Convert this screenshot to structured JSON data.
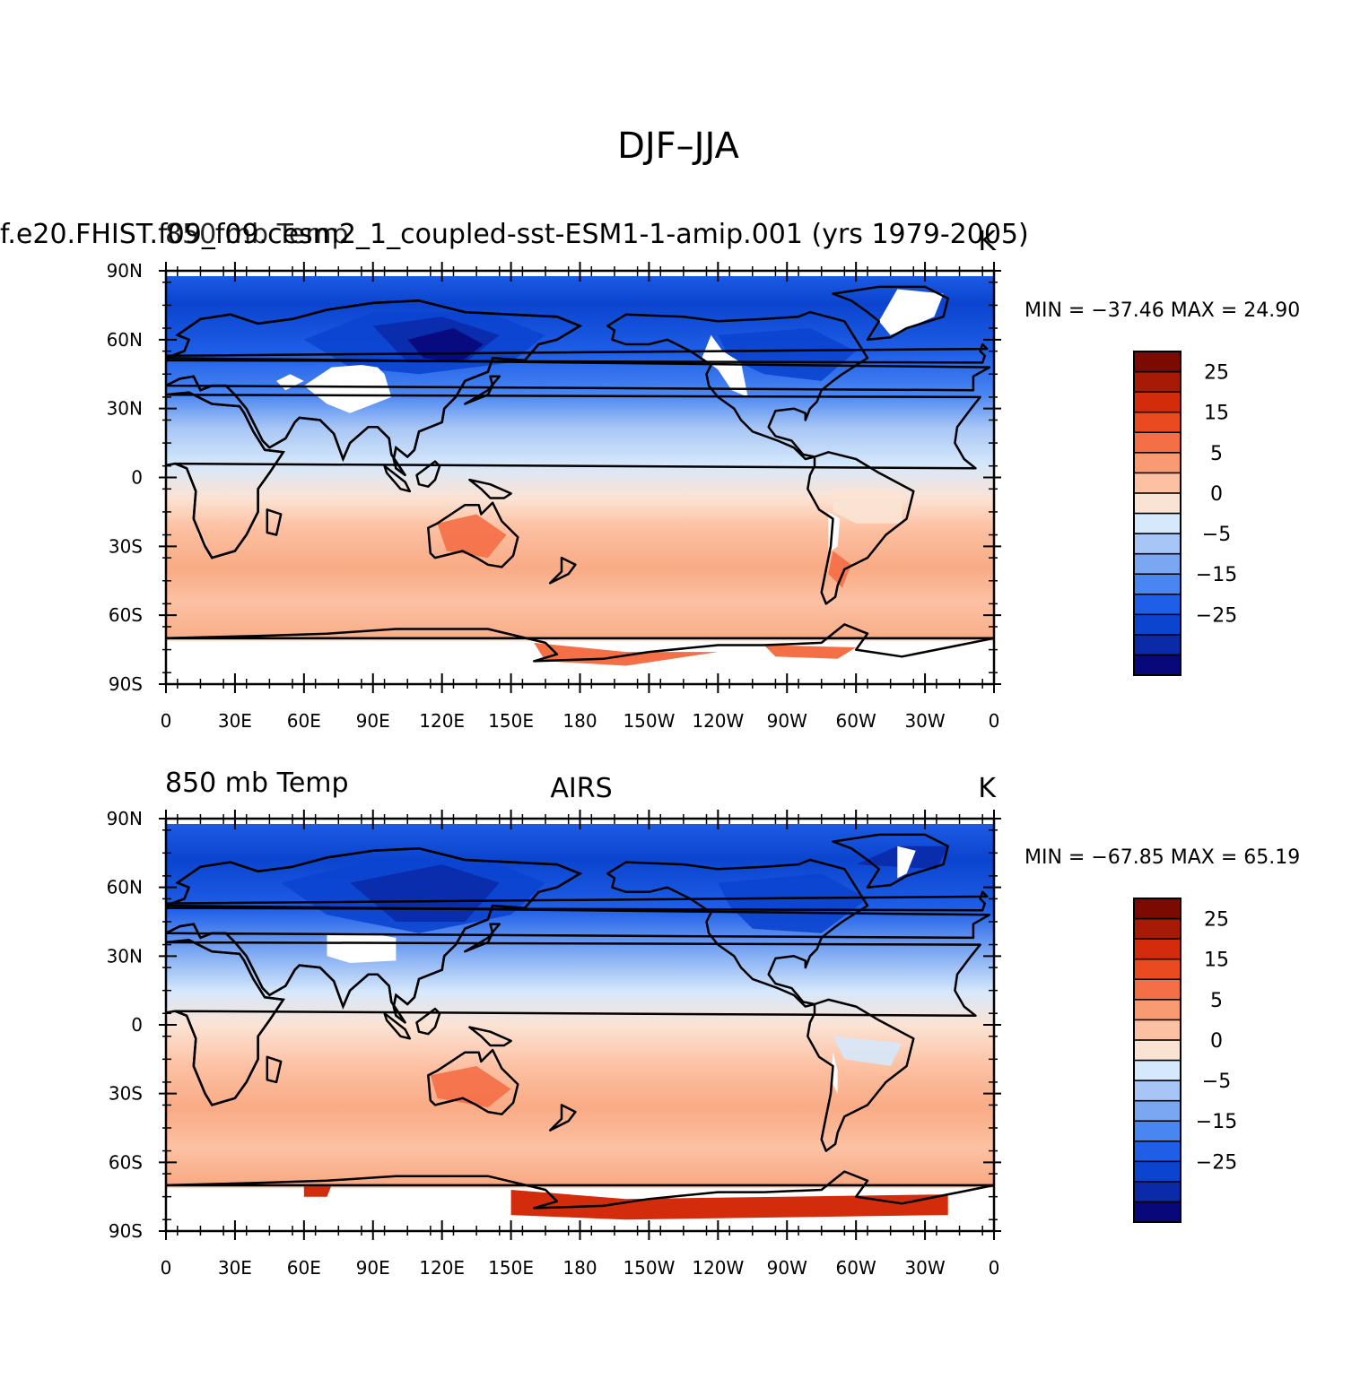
{
  "title": "DJF–JJA",
  "panels": [
    {
      "left_title": "f.e20.FHIST.f09_f09.cesm2_1_coupled-sst-ESM1-1-amip.001 (yrs 1979-2005)",
      "left_title_overlap": "850 mb Temp",
      "center_title": "",
      "right_title": "K",
      "min_max": "MIN = −37.46  MAX =   24.90",
      "colorbar_labels": [
        "25",
        "15",
        "5",
        "0",
        "−5",
        "−15",
        "−25"
      ]
    },
    {
      "left_title": "850 mb Temp",
      "center_title": "AIRS",
      "right_title": "K",
      "min_max": "MIN = −67.85  MAX =   65.19",
      "colorbar_labels": [
        "25",
        "15",
        "5",
        "0",
        "−5",
        "−15",
        "−25"
      ]
    }
  ],
  "axes": {
    "y_ticks": [
      "90N",
      "60N",
      "30N",
      "0",
      "30S",
      "60S",
      "90S"
    ],
    "x_ticks": [
      "0",
      "30E",
      "60E",
      "90E",
      "120E",
      "150E",
      "180",
      "150W",
      "120W",
      "90W",
      "60W",
      "30W",
      "0"
    ]
  },
  "colors": {
    "colorbar": [
      "#08087a",
      "#0a2aa8",
      "#0b44cf",
      "#1f5fe8",
      "#4a86f2",
      "#7aa6f2",
      "#a8c6f5",
      "#d6e8fb",
      "#fbe3d4",
      "#fcc1a3",
      "#f99b72",
      "#f46e46",
      "#ea4a20",
      "#d22c0c",
      "#a61a06",
      "#7a0a02"
    ]
  }
}
